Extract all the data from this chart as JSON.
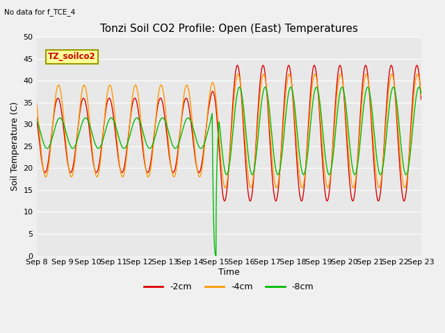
{
  "title": "Tonzi Soil CO2 Profile: Open (East) Temperatures",
  "subtitle": "No data for f_TCE_4",
  "ylabel": "Soil Temperature (C)",
  "xlabel": "Time",
  "ylim": [
    0,
    50
  ],
  "yticks": [
    0,
    5,
    10,
    15,
    20,
    25,
    30,
    35,
    40,
    45,
    50
  ],
  "date_labels": [
    "Sep 8",
    "Sep 9",
    "Sep 10",
    "Sep 11",
    "Sep 12",
    "Sep 13",
    "Sep 14",
    "Sep 15",
    "Sep 16",
    "Sep 17",
    "Sep 18",
    "Sep 19",
    "Sep 20",
    "Sep 21",
    "Sep 22",
    "Sep 23"
  ],
  "colors": {
    "2cm": "#dd0000",
    "4cm": "#ff9900",
    "8cm": "#00bb00"
  },
  "legend_label": "TZ_soilco2",
  "legend_box_color": "#ffff99",
  "legend_box_edge": "#999900",
  "bg_color": "#f0f0f0",
  "plot_bg_color": "#e8e8e8",
  "series_labels": [
    "-2cm",
    "-4cm",
    "-8cm"
  ],
  "title_fontsize": 11,
  "axis_fontsize": 9,
  "tick_fontsize": 8
}
